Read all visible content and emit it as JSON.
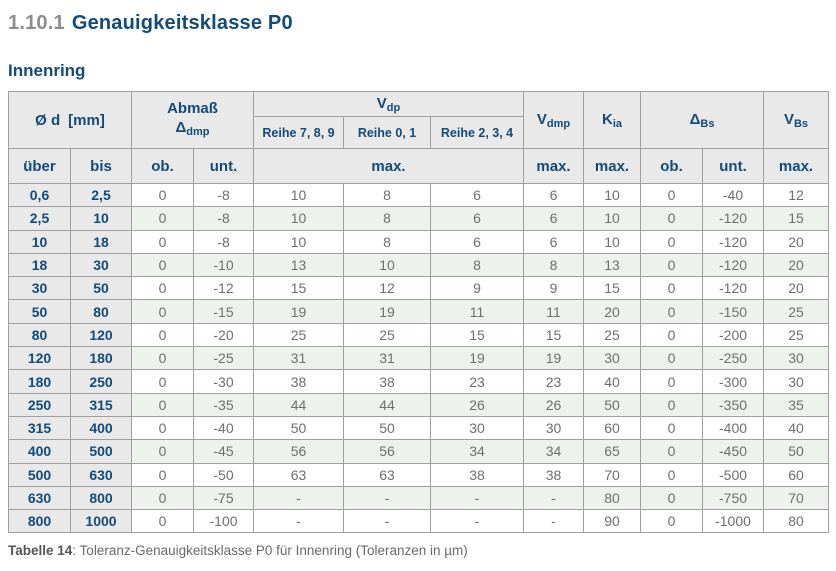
{
  "page": {
    "section_number": "1.10.1",
    "section_title": "Genauigkeitsklasse P0",
    "subtitle": "Innenring",
    "caption_label": "Tabelle 14",
    "caption_text": ": Toleranz-Genauigkeitsklasse P0 für Innenring (Toleranzen in µm)"
  },
  "colors": {
    "heading_blue": "#114b7c",
    "section_number_gray": "#8d8d8d",
    "header_bg": "#e9e9e9",
    "row_stripe_green": "#edf2ec",
    "row_white": "#ffffff",
    "cell_text_gray": "#6f6f6f",
    "border_gray": "#9f9f9f"
  },
  "table": {
    "headers": {
      "diameter_main": "Ø d",
      "diameter_unit": "[mm]",
      "abmass_line1": "Abmaß",
      "abmass_sym": "Δ",
      "abmass_sub": "dmp",
      "vdp_main": "V",
      "vdp_sub": "dp",
      "vdmp_main": "V",
      "vdmp_sub": "dmp",
      "kia_main": "K",
      "kia_sub": "ia",
      "dbs_main": "Δ",
      "dbs_sub": "Bs",
      "vbs_main": "V",
      "vbs_sub": "Bs",
      "reihe789": "Reihe 7, 8, 9",
      "reihe01": "Reihe 0, 1",
      "reihe234": "Reihe 2, 3, 4",
      "ueber": "über",
      "bis": "bis",
      "ob": "ob.",
      "unt": "unt.",
      "max": "max."
    },
    "rows": [
      [
        "0,6",
        "2,5",
        "0",
        "-8",
        "10",
        "8",
        "6",
        "6",
        "10",
        "0",
        "-40",
        "12"
      ],
      [
        "2,5",
        "10",
        "0",
        "-8",
        "10",
        "8",
        "6",
        "6",
        "10",
        "0",
        "-120",
        "15"
      ],
      [
        "10",
        "18",
        "0",
        "-8",
        "10",
        "8",
        "6",
        "6",
        "10",
        "0",
        "-120",
        "20"
      ],
      [
        "18",
        "30",
        "0",
        "-10",
        "13",
        "10",
        "8",
        "8",
        "13",
        "0",
        "-120",
        "20"
      ],
      [
        "30",
        "50",
        "0",
        "-12",
        "15",
        "12",
        "9",
        "9",
        "15",
        "0",
        "-120",
        "20"
      ],
      [
        "50",
        "80",
        "0",
        "-15",
        "19",
        "19",
        "11",
        "11",
        "20",
        "0",
        "-150",
        "25"
      ],
      [
        "80",
        "120",
        "0",
        "-20",
        "25",
        "25",
        "15",
        "15",
        "25",
        "0",
        "-200",
        "25"
      ],
      [
        "120",
        "180",
        "0",
        "-25",
        "31",
        "31",
        "19",
        "19",
        "30",
        "0",
        "-250",
        "30"
      ],
      [
        "180",
        "250",
        "0",
        "-30",
        "38",
        "38",
        "23",
        "23",
        "40",
        "0",
        "-300",
        "30"
      ],
      [
        "250",
        "315",
        "0",
        "-35",
        "44",
        "44",
        "26",
        "26",
        "50",
        "0",
        "-350",
        "35"
      ],
      [
        "315",
        "400",
        "0",
        "-40",
        "50",
        "50",
        "30",
        "30",
        "60",
        "0",
        "-400",
        "40"
      ],
      [
        "400",
        "500",
        "0",
        "-45",
        "56",
        "56",
        "34",
        "34",
        "65",
        "0",
        "-450",
        "50"
      ],
      [
        "500",
        "630",
        "0",
        "-50",
        "63",
        "63",
        "38",
        "38",
        "70",
        "0",
        "-500",
        "60"
      ],
      [
        "630",
        "800",
        "0",
        "-75",
        "-",
        "-",
        "-",
        "-",
        "80",
        "0",
        "-750",
        "70"
      ],
      [
        "800",
        "1000",
        "0",
        "-100",
        "-",
        "-",
        "-",
        "-",
        "90",
        "0",
        "-1000",
        "80"
      ]
    ]
  }
}
